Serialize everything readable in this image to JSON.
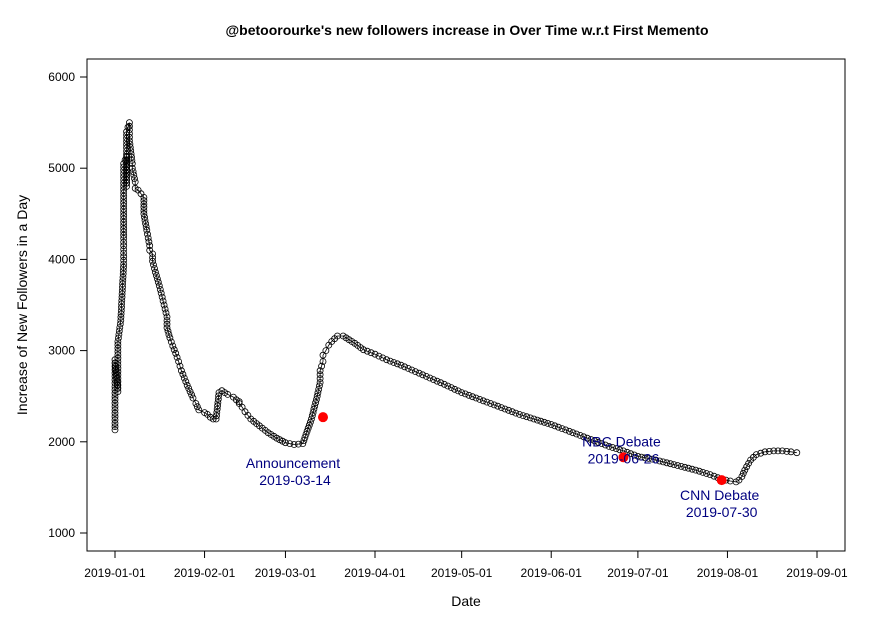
{
  "chart_data": {
    "type": "line",
    "title": "@betoorourke's new followers increase in Over Time w.r.t First Memento",
    "xlabel": "Date",
    "ylabel": "Increase of New Followers in a Day",
    "xlim": [
      "2019-01-01",
      "2019-09-01"
    ],
    "ylim": [
      1000,
      6000
    ],
    "x_ticks": [
      "2019-01-01",
      "2019-02-01",
      "2019-03-01",
      "2019-04-01",
      "2019-05-01",
      "2019-06-01",
      "2019-07-01",
      "2019-08-01",
      "2019-09-01"
    ],
    "y_ticks": [
      "1000",
      "2000",
      "3000",
      "4000",
      "5000",
      "6000"
    ],
    "grid": false,
    "colors": {
      "line": "#000000",
      "marker": "#000000",
      "event": "#ff0000",
      "annotation": "#000080"
    },
    "series": [
      {
        "x": [
          "2019-01-01",
          "2019-01-01",
          "2019-01-02",
          "2019-01-02",
          "2019-01-03",
          "2019-01-04",
          "2019-01-04",
          "2019-01-04",
          "2019-01-05",
          "2019-01-05",
          "2019-01-05",
          "2019-01-06",
          "2019-01-06",
          "2019-01-07",
          "2019-01-07",
          "2019-01-08",
          "2019-01-08",
          "2019-01-09",
          "2019-01-10",
          "2019-01-11",
          "2019-01-11",
          "2019-01-12",
          "2019-01-13",
          "2019-01-13",
          "2019-01-14",
          "2019-01-14",
          "2019-01-15",
          "2019-01-16",
          "2019-01-17",
          "2019-01-18",
          "2019-01-19",
          "2019-01-19",
          "2019-01-20",
          "2019-01-21",
          "2019-01-22",
          "2019-01-23",
          "2019-01-24",
          "2019-01-25",
          "2019-01-26",
          "2019-01-27",
          "2019-01-28",
          "2019-01-29",
          "2019-01-30",
          "2019-02-01",
          "2019-02-02",
          "2019-02-03",
          "2019-02-04",
          "2019-02-05",
          "2019-02-06",
          "2019-02-07",
          "2019-02-09",
          "2019-02-11",
          "2019-02-12",
          "2019-02-13",
          "2019-02-13",
          "2019-02-14",
          "2019-02-15",
          "2019-02-17",
          "2019-02-19",
          "2019-02-21",
          "2019-02-23",
          "2019-02-26",
          "2019-03-01",
          "2019-03-04",
          "2019-03-07",
          "2019-03-10",
          "2019-03-12",
          "2019-03-13",
          "2019-03-13",
          "2019-03-14",
          "2019-03-14",
          "2019-03-15",
          "2019-03-16",
          "2019-03-17",
          "2019-03-19",
          "2019-03-21",
          "2019-03-23",
          "2019-03-25",
          "2019-03-28",
          "2019-04-01",
          "2019-04-05",
          "2019-04-10",
          "2019-04-15",
          "2019-04-20",
          "2019-04-25",
          "2019-05-01",
          "2019-05-06",
          "2019-05-11",
          "2019-05-16",
          "2019-05-21",
          "2019-05-26",
          "2019-06-01",
          "2019-06-06",
          "2019-06-11",
          "2019-06-16",
          "2019-06-21",
          "2019-06-26",
          "2019-07-01",
          "2019-07-06",
          "2019-07-11",
          "2019-07-16",
          "2019-07-21",
          "2019-07-26",
          "2019-07-30",
          "2019-08-02",
          "2019-08-04",
          "2019-08-05",
          "2019-08-06",
          "2019-08-07",
          "2019-08-09",
          "2019-08-11",
          "2019-08-14",
          "2019-08-17",
          "2019-08-20",
          "2019-08-23",
          "2019-08-25"
        ],
        "y": [
          2130,
          2900,
          2550,
          3100,
          3330,
          3950,
          4230,
          5050,
          5130,
          4800,
          5400,
          5500,
          5300,
          5050,
          5000,
          4850,
          4780,
          4760,
          4720,
          4680,
          4500,
          4320,
          4150,
          4100,
          4060,
          3980,
          3860,
          3750,
          3630,
          3500,
          3370,
          3250,
          3140,
          3050,
          2970,
          2880,
          2780,
          2700,
          2620,
          2550,
          2480,
          2420,
          2350,
          2320,
          2300,
          2270,
          2250,
          2250,
          2540,
          2560,
          2520,
          2490,
          2460,
          2440,
          2420,
          2380,
          2330,
          2250,
          2200,
          2150,
          2100,
          2040,
          1990,
          1970,
          1980,
          2250,
          2500,
          2650,
          2780,
          2880,
          2950,
          3000,
          3060,
          3100,
          3160,
          3160,
          3120,
          3080,
          3010,
          2960,
          2900,
          2840,
          2770,
          2700,
          2630,
          2540,
          2480,
          2420,
          2360,
          2300,
          2250,
          2190,
          2130,
          2070,
          2010,
          1950,
          1900,
          1840,
          1810,
          1770,
          1730,
          1690,
          1640,
          1590,
          1570,
          1560,
          1580,
          1620,
          1690,
          1800,
          1860,
          1890,
          1900,
          1900,
          1890,
          1880
        ],
        "line": true
      }
    ],
    "events": [
      {
        "label": "Announcement",
        "date_label": "2019-03-14",
        "x": "2019-03-14",
        "y": 2270
      },
      {
        "label": "NBC Debate",
        "date_label": "2019-06-26",
        "x": "2019-06-26",
        "y": 1830
      },
      {
        "label": "CNN Debate",
        "date_label": "2019-07-30",
        "x": "2019-07-30",
        "y": 1580
      }
    ]
  }
}
